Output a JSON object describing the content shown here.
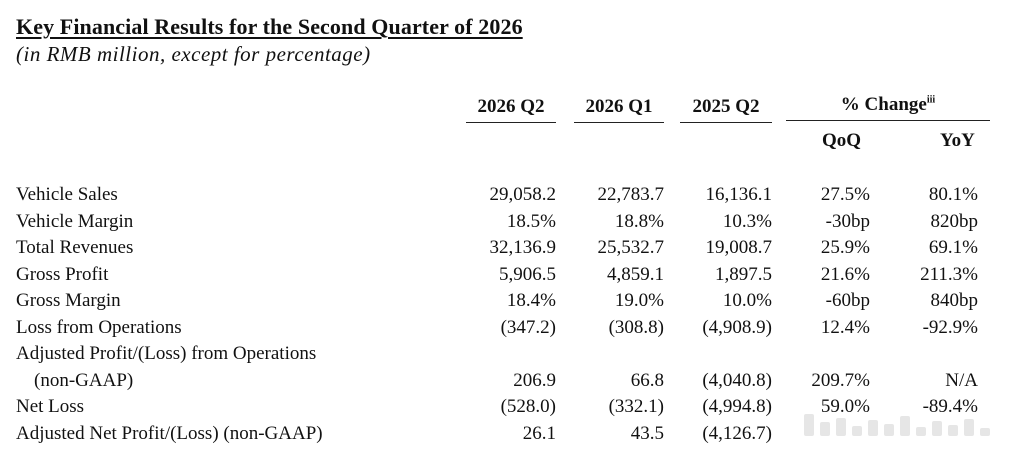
{
  "header": {
    "title": "Key Financial Results for the Second Quarter of 2026",
    "subtitle": "(in RMB million, except for percentage)"
  },
  "columns": {
    "periods": [
      "2026 Q2",
      "2026 Q1",
      "2025 Q2"
    ],
    "change_label": "% Change",
    "change_footnote": "iii",
    "change_sub": [
      "QoQ",
      "YoY"
    ]
  },
  "rows": [
    {
      "label": "Vehicle Sales",
      "values": [
        "29,058.2",
        "22,783.7",
        "16,136.1",
        "27.5%",
        "80.1%"
      ]
    },
    {
      "label": "Vehicle Margin",
      "values": [
        "18.5%",
        "18.8%",
        "10.3%",
        "-30bp",
        "820bp"
      ]
    },
    {
      "label": "Total Revenues",
      "values": [
        "32,136.9",
        "25,532.7",
        "19,008.7",
        "25.9%",
        "69.1%"
      ]
    },
    {
      "label": "Gross Profit",
      "values": [
        "5,906.5",
        "4,859.1",
        "1,897.5",
        "21.6%",
        "211.3%"
      ]
    },
    {
      "label": "Gross Margin",
      "values": [
        "18.4%",
        "19.0%",
        "10.0%",
        "-60bp",
        "840bp"
      ]
    },
    {
      "label": "Loss from Operations",
      "values": [
        "(347.2)",
        "(308.8)",
        "(4,908.9)",
        "12.4%",
        "-92.9%"
      ]
    },
    {
      "label": "Adjusted Profit/(Loss) from Operations",
      "label2": "(non-GAAP)",
      "values": [
        "206.9",
        "66.8",
        "(4,040.8)",
        "209.7%",
        "N/A"
      ]
    },
    {
      "label": "Net Loss",
      "values": [
        "(528.0)",
        "(332.1)",
        "(4,994.8)",
        "59.0%",
        "-89.4%"
      ]
    },
    {
      "label": "Adjusted Net Profit/(Loss) (non-GAAP)",
      "values": [
        "26.1",
        "43.5",
        "(4,126.7)",
        "",
        ""
      ]
    }
  ]
}
